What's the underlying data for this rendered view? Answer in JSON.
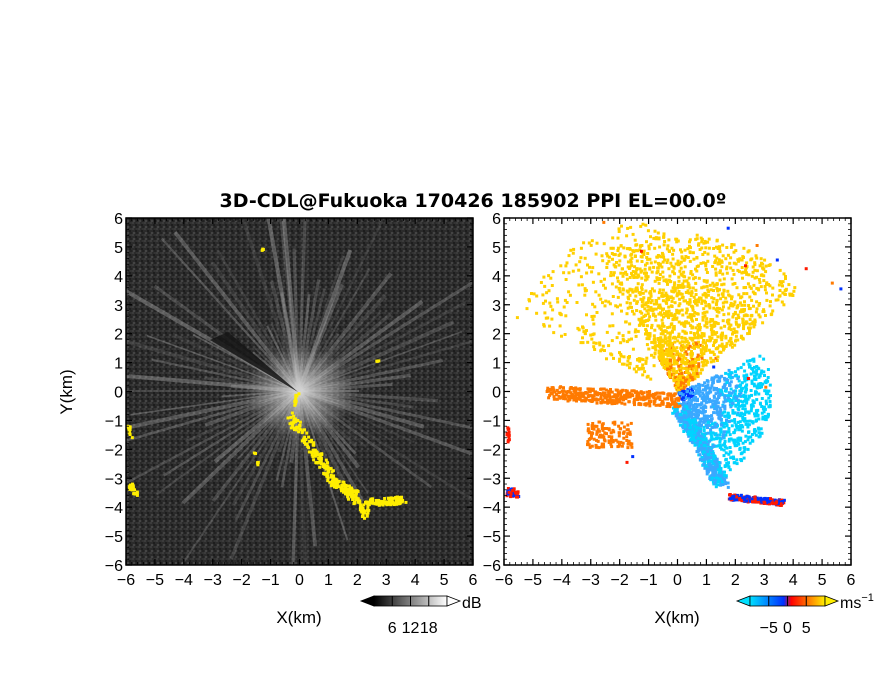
{
  "chart_data": {
    "title": "3D-CDL@Fukuoka 170426 185902 PPI EL=00.0º",
    "panels": [
      {
        "type": "heatmap",
        "quantity": "SNR",
        "xlabel": "X(km)",
        "ylabel": "Y(km)",
        "xlim": [
          -6,
          6
        ],
        "ylim": [
          -6,
          6
        ],
        "xticks": [
          "-6",
          "-5",
          "-4",
          "-3",
          "-2",
          "-1",
          "0",
          "1",
          "2",
          "3",
          "4",
          "5",
          "6"
        ],
        "yticks": [
          "-6",
          "-5",
          "-4",
          "-3",
          "-2",
          "-1",
          "0",
          "1",
          "2",
          "3",
          "4",
          "5",
          "6"
        ],
        "background_color": "#2a2a2a",
        "overlay_color": "#ffee00",
        "colorbar": {
          "unit": "dB",
          "ticks": [
            "6",
            "12",
            "18"
          ],
          "range": [
            0,
            24
          ],
          "colors": [
            "#000000",
            "#ffffff"
          ]
        }
      },
      {
        "type": "heatmap",
        "quantity": "Doppler velocity",
        "xlabel": "X(km)",
        "xlim": [
          -6,
          6
        ],
        "ylim": [
          -6,
          6
        ],
        "xticks": [
          "-6",
          "-5",
          "-4",
          "-3",
          "-2",
          "-1",
          "0",
          "1",
          "2",
          "3",
          "4",
          "5",
          "6"
        ],
        "yticks": [
          "-6",
          "-5",
          "-4",
          "-3",
          "-2",
          "-1",
          "0",
          "1",
          "2",
          "3",
          "4",
          "5",
          "6"
        ],
        "colorbar": {
          "unit": "ms",
          "unit_exponent": "−1",
          "ticks": [
            "−5",
            "0",
            "5"
          ],
          "range": [
            -10,
            10
          ],
          "colors": [
            "#00e0ff",
            "#0030ff",
            "#ff0000",
            "#ffee00"
          ]
        }
      }
    ]
  }
}
